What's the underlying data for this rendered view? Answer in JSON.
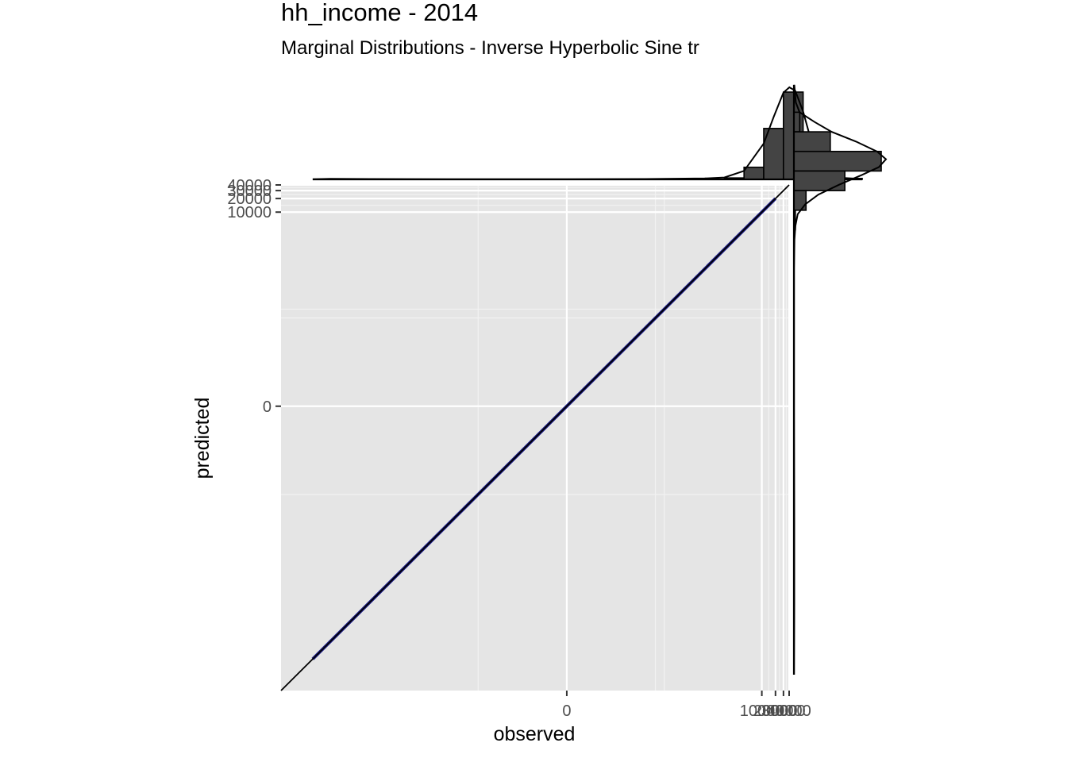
{
  "chart_data": {
    "type": "scatter",
    "title": "hh_income - 2014",
    "subtitle": "Marginal Distributions - Inverse Hyperbolic Sine tr",
    "xlabel": "observed",
    "ylabel": "predicted",
    "scale": "inverse hyperbolic sine",
    "x_range": [
      -1000000,
      40000
    ],
    "y_range": [
      -1000000,
      40000
    ],
    "x_ticks": [
      0,
      10000,
      20000,
      30000,
      40000
    ],
    "x_tick_labels": [
      "0",
      "10000",
      "20000",
      "30000",
      "40000"
    ],
    "y_ticks": [
      0,
      10000,
      20000,
      30000,
      40000
    ],
    "y_tick_labels": [
      "0",
      "10000",
      "20000",
      "30000",
      "40000"
    ],
    "reference_line": "y = x",
    "fit_line": {
      "from": -200000,
      "to": 20000,
      "color": "#1c1c8a"
    },
    "panel_background": "#e5e5e5",
    "grid": true,
    "marginal_x": {
      "type": "histogram+density",
      "bin_width": 1,
      "bins": [
        {
          "x0": 7,
          "x1": 8,
          "count": 5
        },
        {
          "x0": 8,
          "x1": 9,
          "count": 60
        },
        {
          "x0": 9,
          "x1": 10,
          "count": 500
        },
        {
          "x0": 10,
          "x1": 11,
          "count": 2100
        },
        {
          "x0": 11,
          "x1": 12,
          "count": 3600
        },
        {
          "x0": 12,
          "x1": 13,
          "count": 1500
        },
        {
          "x0": 13,
          "x1": 14,
          "count": 220
        },
        {
          "x0": 14,
          "x1": 15,
          "count": 40
        }
      ],
      "density": [
        [
          -12.9,
          0.001
        ],
        [
          -12,
          0.003
        ],
        [
          -10,
          0.002
        ],
        [
          -6,
          0.001
        ],
        [
          0,
          0.001
        ],
        [
          4,
          0.002
        ],
        [
          7,
          0.005
        ],
        [
          8,
          0.01
        ],
        [
          9,
          0.045
        ],
        [
          10,
          0.19
        ],
        [
          10.5,
          0.33
        ],
        [
          11,
          0.46
        ],
        [
          11.3,
          0.488
        ],
        [
          11.6,
          0.47
        ],
        [
          12,
          0.36
        ],
        [
          12.5,
          0.17
        ],
        [
          13,
          0.06
        ],
        [
          13.5,
          0.025
        ],
        [
          14,
          0.008
        ],
        [
          15,
          0.002
        ]
      ]
    },
    "marginal_y": {
      "type": "histogram+density",
      "bin_width": 1,
      "bins": [
        {
          "y0": 15,
          "y1": 16,
          "count": 10
        },
        {
          "y0": 14,
          "y1": 15,
          "count": 240
        },
        {
          "y0": 13,
          "y1": 14,
          "count": 1500
        },
        {
          "y0": 12,
          "y1": 13,
          "count": 3600
        },
        {
          "y0": 11,
          "y1": 12,
          "count": 2100
        },
        {
          "y0": 10,
          "y1": 11,
          "count": 500
        },
        {
          "y0": 9,
          "y1": 10,
          "count": 60
        },
        {
          "y0": 8,
          "y1": 9,
          "count": 8
        }
      ],
      "density": [
        [
          16.4,
          0.002
        ],
        [
          15.5,
          0.01
        ],
        [
          15,
          0.03
        ],
        [
          14.5,
          0.11
        ],
        [
          14,
          0.2
        ],
        [
          13.5,
          0.33
        ],
        [
          13,
          0.44
        ],
        [
          12.6,
          0.488
        ],
        [
          12.2,
          0.45
        ],
        [
          11.8,
          0.36
        ],
        [
          11.3,
          0.24
        ],
        [
          10.8,
          0.13
        ],
        [
          10.3,
          0.06
        ],
        [
          9.8,
          0.02
        ],
        [
          9.2,
          0.008
        ],
        [
          8.5,
          0.003
        ],
        [
          7,
          0.001
        ],
        [
          3,
          0.001
        ],
        [
          0,
          0.001
        ],
        [
          -6,
          0.002
        ],
        [
          -10,
          0.002
        ],
        [
          -13.7,
          0.001
        ]
      ]
    }
  }
}
